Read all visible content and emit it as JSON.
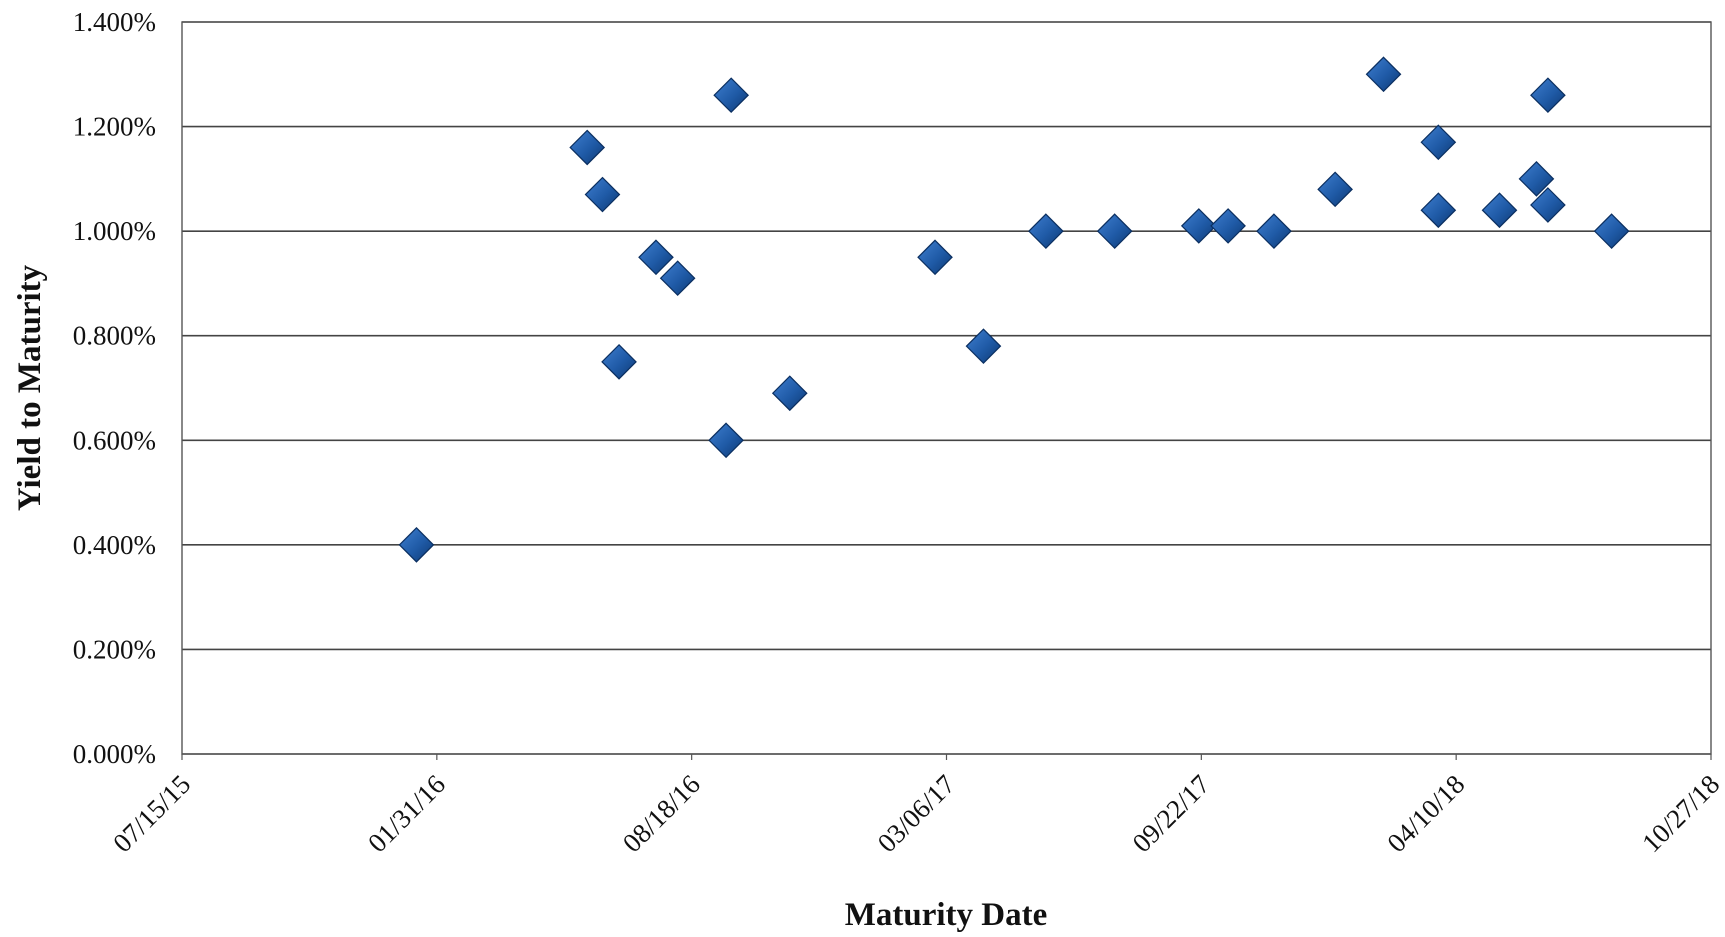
{
  "chart_data": {
    "type": "scatter",
    "title": "",
    "xlabel": "Maturity Date",
    "ylabel": "Yield to Maturity",
    "x_tick_labels": [
      "07/15/15",
      "01/31/16",
      "08/18/16",
      "03/06/17",
      "09/22/17",
      "04/10/18",
      "10/27/18"
    ],
    "x_ticks": [
      "2015-07-15",
      "2016-01-31",
      "2016-08-18",
      "2017-03-06",
      "2017-09-22",
      "2018-04-10",
      "2018-10-27"
    ],
    "xlim": [
      "2015-07-15",
      "2018-10-27"
    ],
    "y_tick_labels": [
      "0.000%",
      "0.200%",
      "0.400%",
      "0.600%",
      "0.800%",
      "1.000%",
      "1.200%",
      "1.400%"
    ],
    "y_ticks": [
      0,
      0.2,
      0.4,
      0.6,
      0.8,
      1.0,
      1.2,
      1.4
    ],
    "ylim": [
      0,
      1.4
    ],
    "y_unit": "%",
    "grid": "horizontal",
    "legend": "none",
    "marker": "diamond",
    "marker_color": "#1f5aa6",
    "series": [
      {
        "points": [
          {
            "x": "2016-01-15",
            "y": 0.4
          },
          {
            "x": "2016-05-28",
            "y": 1.16
          },
          {
            "x": "2016-06-09",
            "y": 1.07
          },
          {
            "x": "2016-06-22",
            "y": 0.75
          },
          {
            "x": "2016-07-21",
            "y": 0.95
          },
          {
            "x": "2016-08-07",
            "y": 0.91
          },
          {
            "x": "2016-09-14",
            "y": 0.6
          },
          {
            "x": "2016-09-18",
            "y": 1.26
          },
          {
            "x": "2016-11-03",
            "y": 0.69
          },
          {
            "x": "2017-02-25",
            "y": 0.95
          },
          {
            "x": "2017-04-04",
            "y": 0.78
          },
          {
            "x": "2017-05-23",
            "y": 1.0
          },
          {
            "x": "2017-07-16",
            "y": 1.0
          },
          {
            "x": "2017-09-20",
            "y": 1.01
          },
          {
            "x": "2017-10-13",
            "y": 1.01
          },
          {
            "x": "2017-11-18",
            "y": 1.0
          },
          {
            "x": "2018-01-05",
            "y": 1.08
          },
          {
            "x": "2018-02-12",
            "y": 1.3
          },
          {
            "x": "2018-03-27",
            "y": 1.17
          },
          {
            "x": "2018-03-27",
            "y": 1.04
          },
          {
            "x": "2018-05-14",
            "y": 1.04
          },
          {
            "x": "2018-06-12",
            "y": 1.1
          },
          {
            "x": "2018-06-21",
            "y": 1.05
          },
          {
            "x": "2018-06-21",
            "y": 1.26
          },
          {
            "x": "2018-08-10",
            "y": 1.0
          }
        ]
      }
    ]
  }
}
